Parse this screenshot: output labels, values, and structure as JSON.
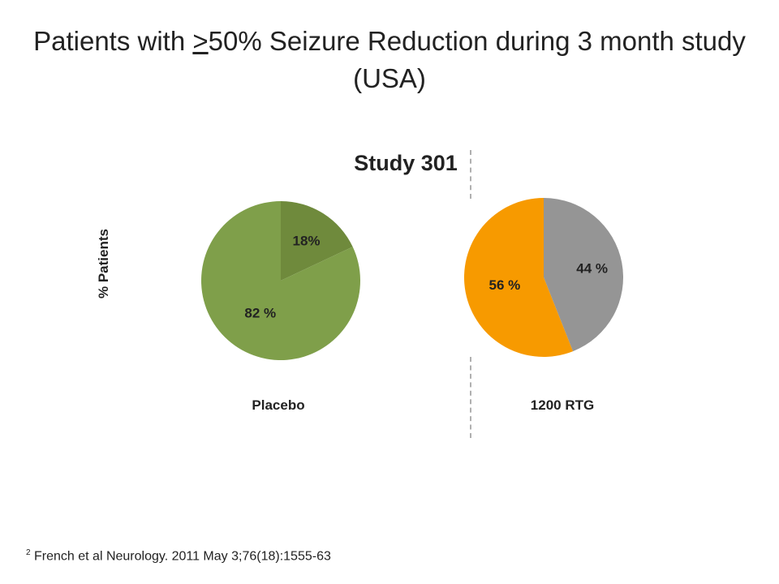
{
  "slide": {
    "title_before": "Patients with ",
    "title_symbol": ">",
    "title_after": "50% Seizure Reduction during 3 month study (USA)",
    "footnote_number": "2",
    "footnote_text": "French et al Neurology. 2011 May 3;76(18):1555-63"
  },
  "chart_data": {
    "type": "pie",
    "title": "Study 301",
    "ylabel": "% Patients",
    "pies": [
      {
        "name": "Placebo",
        "slices": [
          {
            "value": 18,
            "label": "18%",
            "color": "#6f8a3c"
          },
          {
            "value": 82,
            "label": "82 %",
            "color": "#7f9f4a"
          }
        ]
      },
      {
        "name": "1200 RTG",
        "slices": [
          {
            "value": 44,
            "label": "44 %",
            "color": "#959595"
          },
          {
            "value": 56,
            "label": "56 %",
            "color": "#f79a00"
          }
        ]
      }
    ]
  }
}
